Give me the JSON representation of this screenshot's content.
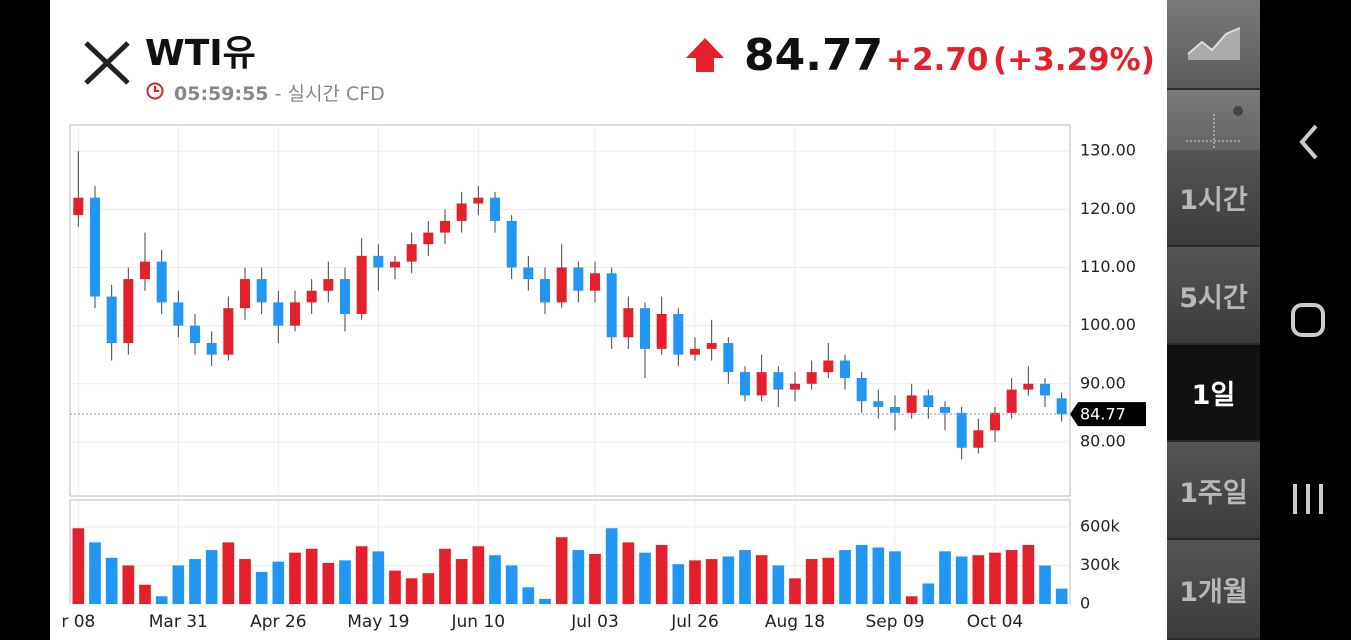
{
  "header": {
    "title": "WTI유",
    "time": "05:59:55",
    "source": "- 실시간 CFD",
    "price": "84.77",
    "change": "+2.70",
    "change_pct": "(+3.29%)"
  },
  "sidebar": {
    "intervals": [
      "1시간",
      "5시간",
      "1일",
      "1주일",
      "1개월"
    ],
    "selected": "1일"
  },
  "chart_data": [
    {
      "type": "candlestick",
      "up_color": "#e3202c",
      "down_color": "#2196f3",
      "grid": true,
      "categories": [
        "r 08",
        null,
        null,
        null,
        null,
        null,
        "Mar 31",
        null,
        null,
        null,
        null,
        null,
        "Apr 26",
        null,
        null,
        null,
        null,
        null,
        "May 19",
        null,
        null,
        null,
        null,
        null,
        "Jun 10",
        null,
        null,
        null,
        null,
        null,
        null,
        "Jul 03",
        null,
        null,
        null,
        null,
        null,
        "Jul 26",
        null,
        null,
        null,
        null,
        null,
        "Aug 18",
        null,
        null,
        null,
        null,
        null,
        "Sep 09",
        null,
        null,
        null,
        null,
        null,
        "Oct 04",
        null,
        null,
        null,
        null
      ],
      "open": [
        119,
        122,
        105,
        97,
        108,
        111,
        104,
        100,
        97,
        95,
        103,
        108,
        104,
        100,
        104,
        106,
        108,
        102,
        112,
        110,
        111,
        114,
        116,
        118,
        121,
        122,
        118,
        110,
        108,
        104,
        110,
        106,
        109,
        98,
        103,
        96,
        102,
        95,
        96,
        97,
        92,
        88,
        92,
        89,
        90,
        92,
        94,
        91,
        87,
        86,
        85,
        88,
        86,
        85,
        79,
        82,
        85,
        89,
        90,
        87.5
      ],
      "high": [
        130,
        124,
        107,
        110,
        116,
        113,
        106,
        102,
        99,
        105,
        110,
        110,
        106,
        106,
        108,
        111,
        110,
        115,
        114,
        112,
        116,
        118,
        120,
        123,
        124,
        123,
        119,
        112,
        110,
        114,
        111,
        111,
        110,
        105,
        104,
        105,
        103,
        98,
        101,
        98,
        93,
        95,
        93,
        92,
        94,
        97,
        95,
        92,
        89,
        88,
        90,
        89,
        87,
        86,
        84,
        86,
        91,
        93,
        91,
        88.5
      ],
      "low": [
        117,
        103,
        94,
        95,
        106,
        102,
        98,
        95,
        93,
        94,
        101,
        102,
        97,
        99,
        102,
        104,
        99,
        101,
        106,
        108,
        109,
        112,
        114,
        116,
        119,
        116,
        108,
        106,
        102,
        103,
        104,
        104,
        96,
        96,
        91,
        95,
        93,
        94,
        94,
        90,
        87,
        87,
        86,
        87,
        89,
        91,
        89,
        85,
        84,
        82,
        84,
        84,
        82,
        77,
        78,
        80,
        84,
        88,
        86,
        83.5
      ],
      "close": [
        122,
        105,
        97,
        108,
        111,
        104,
        100,
        97,
        95,
        103,
        108,
        104,
        100,
        104,
        106,
        108,
        102,
        112,
        110,
        111,
        114,
        116,
        118,
        121,
        122,
        118,
        110,
        108,
        104,
        110,
        106,
        109,
        98,
        103,
        96,
        102,
        95,
        96,
        97,
        92,
        88,
        92,
        89,
        90,
        92,
        94,
        91,
        87,
        86,
        85,
        88,
        86,
        85,
        79,
        82,
        85,
        89,
        90,
        88,
        84.77
      ],
      "last_price": 84.77,
      "ylim": [
        70.7,
        134.5
      ],
      "yticks": [
        {
          "value": 80,
          "label": "80.00"
        },
        {
          "value": 90,
          "label": "90.00"
        },
        {
          "value": 100,
          "label": "100.00"
        },
        {
          "value": 110,
          "label": "110.00"
        },
        {
          "value": 120,
          "label": "120.00"
        },
        {
          "value": 130,
          "label": "130.00"
        }
      ]
    },
    {
      "type": "bar",
      "values": [
        590000,
        480000,
        360000,
        300000,
        150000,
        60000,
        300000,
        350000,
        420000,
        480000,
        350000,
        250000,
        330000,
        400000,
        430000,
        320000,
        340000,
        450000,
        410000,
        260000,
        200000,
        240000,
        430000,
        350000,
        450000,
        380000,
        300000,
        130000,
        40000,
        520000,
        420000,
        390000,
        590000,
        480000,
        400000,
        460000,
        310000,
        340000,
        350000,
        370000,
        420000,
        380000,
        300000,
        200000,
        350000,
        360000,
        420000,
        460000,
        440000,
        410000,
        60000,
        160000,
        410000,
        370000,
        380000,
        400000,
        420000,
        460000,
        300000,
        120000
      ],
      "ylim": [
        0,
        810000
      ],
      "yticks": [
        0,
        {
          "value": 300000,
          "label": "300k"
        },
        {
          "value": 600000,
          "label": "600k"
        }
      ]
    }
  ]
}
